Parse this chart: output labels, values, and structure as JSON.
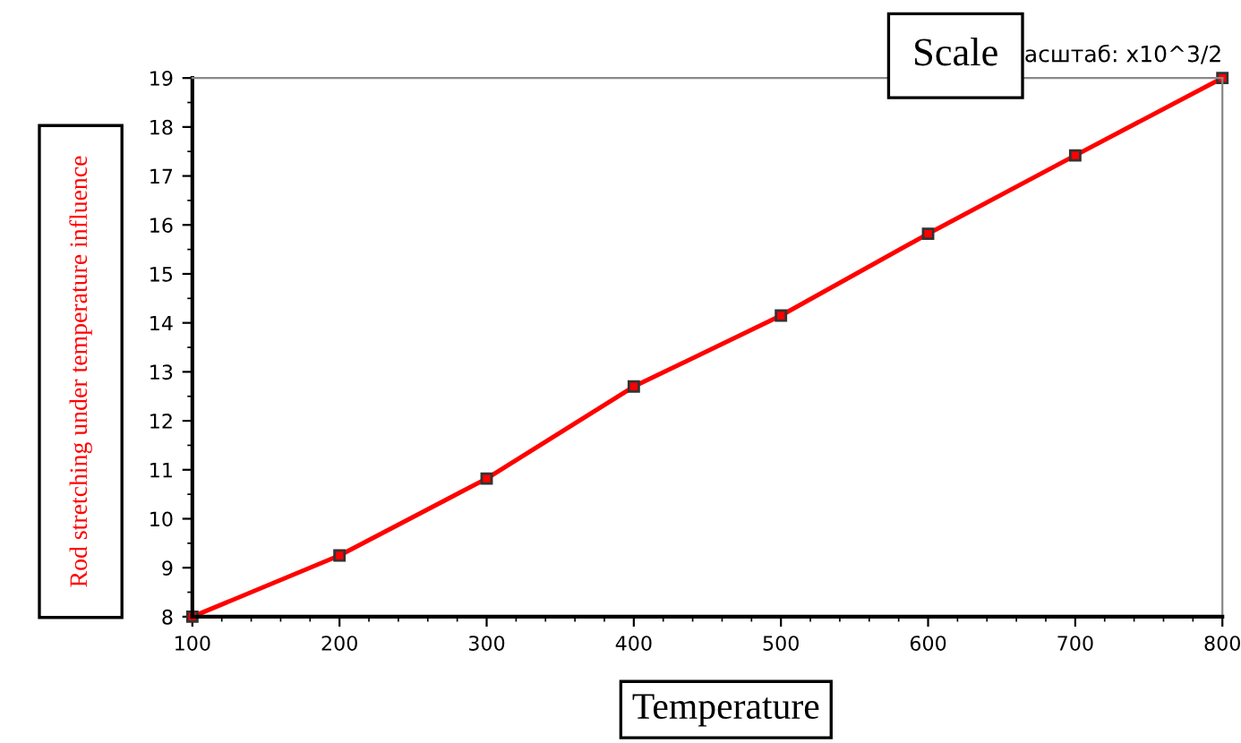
{
  "chart_data": {
    "type": "line",
    "title": "Scale",
    "subtitle": "асштаб: x10^3/2",
    "xlabel": "Temperature",
    "ylabel": "Rod stretching under temperature influence",
    "x": [
      100,
      200,
      300,
      400,
      500,
      600,
      700,
      800
    ],
    "series": [
      {
        "color": "#ff0000",
        "values": [
          8.0,
          9.25,
          10.82,
          12.7,
          14.15,
          15.82,
          17.42,
          19.0
        ]
      }
    ],
    "xlim": [
      100,
      800
    ],
    "xticks": [
      100,
      200,
      300,
      400,
      500,
      600,
      700,
      800
    ],
    "ylim": [
      8,
      19
    ],
    "yticks": [
      8,
      9,
      10,
      11,
      12,
      13,
      14,
      15,
      16,
      17,
      18,
      19
    ],
    "grid": false,
    "legend": false,
    "marker": "square",
    "line_style": "solid"
  }
}
